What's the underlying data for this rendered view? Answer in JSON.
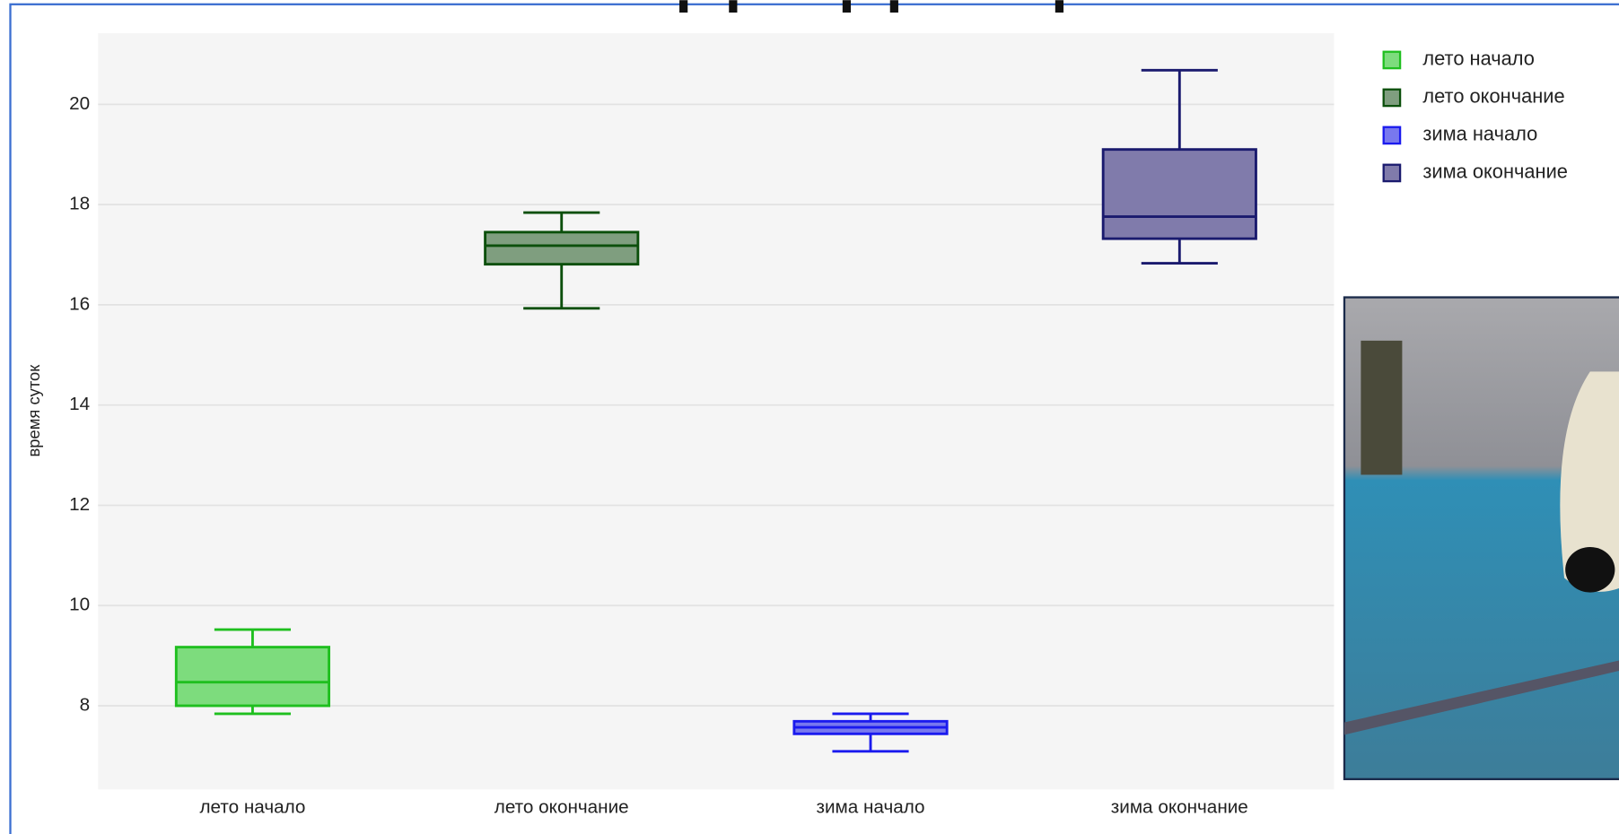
{
  "chart_data": {
    "type": "box",
    "y_label": "время суток",
    "categories": [
      "лето начало",
      "лето окончание",
      "зима начало",
      "зима окончание"
    ],
    "ylim": [
      6.33,
      21.42
    ],
    "yticks": [
      8,
      10,
      12,
      14,
      16,
      18,
      20
    ],
    "grid": true,
    "legend": "top-right",
    "series": [
      {
        "name": "лето начало",
        "color": "#1fbf1f",
        "fill": "#7ddc7d",
        "whisker_low": 7.84,
        "q1": 8.0,
        "median": 8.47,
        "q3": 9.17,
        "whisker_high": 9.52
      },
      {
        "name": "лето окончание",
        "color": "#0b4f0b",
        "fill": "#7f9e7f",
        "whisker_low": 15.93,
        "q1": 16.81,
        "median": 17.18,
        "q3": 17.45,
        "whisker_high": 17.84
      },
      {
        "name": "зима начало",
        "color": "#1a1aee",
        "fill": "#7878ee",
        "whisker_low": 7.09,
        "q1": 7.44,
        "median": 7.57,
        "q3": 7.69,
        "whisker_high": 7.84
      },
      {
        "name": "зима окончание",
        "color": "#1a1a6e",
        "fill": "#807bab",
        "whisker_low": 16.83,
        "q1": 17.32,
        "median": 17.76,
        "q3": 19.1,
        "whisker_high": 20.68
      }
    ]
  }
}
